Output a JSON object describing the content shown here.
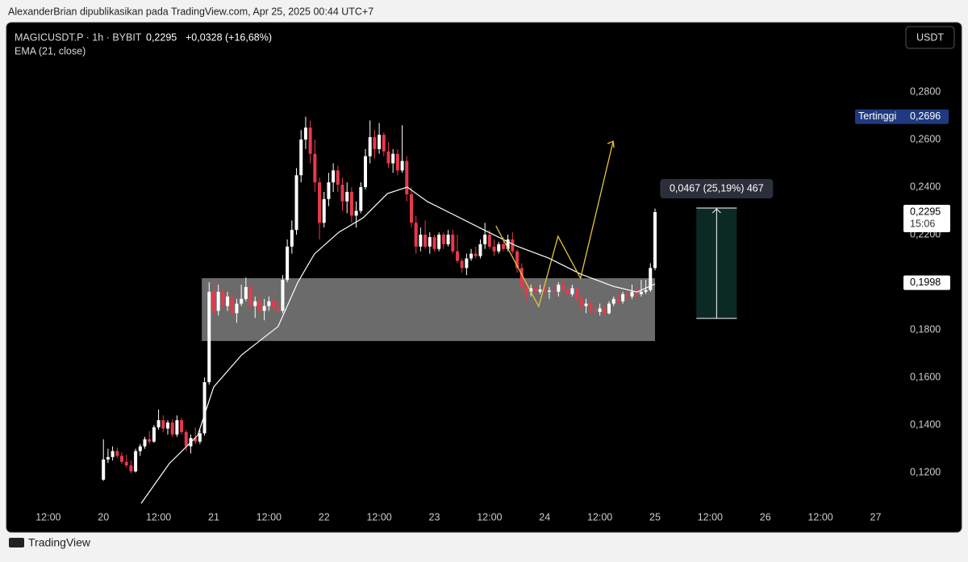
{
  "header": {
    "attribution": "AlexanderBrian dipublikasikan pada TradingView.com, Apr 25, 2025 00:44 UTC+7",
    "symbol": "MAGICUSDT.P · 1h · BYBIT",
    "last": "0,2295",
    "change": "+0,0328 (+16,68%)",
    "currency": "USDT",
    "brand": "TradingView"
  },
  "chart_data": {
    "type": "candlestick",
    "up_color": "#ffffff",
    "down_color": "#e8394a",
    "xlim": [
      1.5,
      196.3
    ],
    "ylim": [
      0.1051,
      0.3085
    ],
    "xticks": [
      {
        "value": 12,
        "label": "12:00"
      },
      {
        "value": 24,
        "label": "20"
      },
      {
        "value": 36,
        "label": "12:00"
      },
      {
        "value": 48,
        "label": "21"
      },
      {
        "value": 60,
        "label": "12:00"
      },
      {
        "value": 72,
        "label": "22"
      },
      {
        "value": 84,
        "label": "12:00"
      },
      {
        "value": 96,
        "label": "23"
      },
      {
        "value": 108,
        "label": "12:00"
      },
      {
        "value": 120,
        "label": "24"
      },
      {
        "value": 132,
        "label": "12:00"
      },
      {
        "value": 144,
        "label": "25"
      },
      {
        "value": 156,
        "label": "12:00"
      },
      {
        "value": 168,
        "label": "26"
      },
      {
        "value": 180,
        "label": "12:00"
      },
      {
        "value": 192,
        "label": "27"
      }
    ],
    "yticks": [
      {
        "value": 0.12,
        "label": "0,1200"
      },
      {
        "value": 0.14,
        "label": "0,1400"
      },
      {
        "value": 0.16,
        "label": "0,1600"
      },
      {
        "value": 0.18,
        "label": "0,1800"
      },
      {
        "value": 0.22,
        "label": "0,2200"
      },
      {
        "value": 0.24,
        "label": "0,2400"
      },
      {
        "value": 0.26,
        "label": "0,2600"
      },
      {
        "value": 0.28,
        "label": "0,2800"
      }
    ],
    "x": [
      24,
      25,
      26,
      27,
      28,
      29,
      30,
      31,
      32,
      33,
      34,
      35,
      36,
      37,
      38,
      39,
      40,
      41,
      42,
      43,
      44,
      45,
      46,
      47,
      48,
      49,
      50,
      51,
      52,
      53,
      54,
      55,
      56,
      57,
      58,
      59,
      60,
      61,
      62,
      63,
      64,
      65,
      66,
      67,
      68,
      69,
      70,
      71,
      72,
      73,
      74,
      75,
      76,
      77,
      78,
      79,
      80,
      81,
      82,
      83,
      84,
      85,
      86,
      87,
      88,
      89,
      90,
      91,
      92,
      93,
      94,
      95,
      96,
      97,
      98,
      99,
      100,
      101,
      102,
      103,
      104,
      105,
      106,
      107,
      108,
      109,
      110,
      111,
      112,
      113,
      114,
      115,
      116,
      117,
      118,
      119,
      120,
      121,
      122,
      123,
      124,
      125,
      126,
      127,
      128,
      129,
      130,
      131,
      132,
      133,
      134,
      135,
      136,
      137,
      138,
      139,
      140,
      141,
      142,
      143,
      144
    ],
    "ohlc": [
      [
        0.117,
        0.134,
        0.1165,
        0.1255
      ],
      [
        0.1255,
        0.13,
        0.124,
        0.1265
      ],
      [
        0.1265,
        0.131,
        0.125,
        0.129
      ],
      [
        0.129,
        0.1305,
        0.126,
        0.127
      ],
      [
        0.127,
        0.1285,
        0.1235,
        0.1245
      ],
      [
        0.1245,
        0.1275,
        0.122,
        0.123
      ],
      [
        0.123,
        0.125,
        0.1195,
        0.1205
      ],
      [
        0.1205,
        0.13,
        0.12,
        0.129
      ],
      [
        0.129,
        0.132,
        0.127,
        0.131
      ],
      [
        0.131,
        0.135,
        0.13,
        0.134
      ],
      [
        0.134,
        0.1375,
        0.132,
        0.133
      ],
      [
        0.133,
        0.14,
        0.1325,
        0.139
      ],
      [
        0.139,
        0.1465,
        0.138,
        0.142
      ],
      [
        0.142,
        0.144,
        0.137,
        0.1385
      ],
      [
        0.1385,
        0.142,
        0.136,
        0.141
      ],
      [
        0.141,
        0.1425,
        0.135,
        0.136
      ],
      [
        0.136,
        0.144,
        0.135,
        0.142
      ],
      [
        0.142,
        0.143,
        0.136,
        0.137
      ],
      [
        0.137,
        0.138,
        0.129,
        0.131
      ],
      [
        0.131,
        0.136,
        0.128,
        0.1345
      ],
      [
        0.1345,
        0.139,
        0.132,
        0.133
      ],
      [
        0.133,
        0.138,
        0.132,
        0.1365
      ],
      [
        0.1365,
        0.16,
        0.1355,
        0.158
      ],
      [
        0.158,
        0.2,
        0.157,
        0.196
      ],
      [
        0.196,
        0.2,
        0.185,
        0.188
      ],
      [
        0.188,
        0.199,
        0.186,
        0.196
      ],
      [
        0.196,
        0.1975,
        0.189,
        0.19
      ],
      [
        0.19,
        0.196,
        0.188,
        0.194
      ],
      [
        0.194,
        0.195,
        0.186,
        0.187
      ],
      [
        0.187,
        0.193,
        0.183,
        0.191
      ],
      [
        0.191,
        0.199,
        0.19,
        0.193
      ],
      [
        0.193,
        0.202,
        0.192,
        0.198
      ],
      [
        0.198,
        0.199,
        0.189,
        0.19
      ],
      [
        0.19,
        0.194,
        0.185,
        0.192
      ],
      [
        0.192,
        0.195,
        0.187,
        0.188
      ],
      [
        0.188,
        0.193,
        0.184,
        0.19
      ],
      [
        0.19,
        0.194,
        0.188,
        0.192
      ],
      [
        0.192,
        0.195,
        0.188,
        0.1895
      ],
      [
        0.1895,
        0.192,
        0.187,
        0.188
      ],
      [
        0.188,
        0.203,
        0.187,
        0.201
      ],
      [
        0.201,
        0.218,
        0.2,
        0.215
      ],
      [
        0.215,
        0.226,
        0.212,
        0.222
      ],
      [
        0.222,
        0.248,
        0.22,
        0.245
      ],
      [
        0.245,
        0.264,
        0.242,
        0.26
      ],
      [
        0.26,
        0.2696,
        0.256,
        0.265
      ],
      [
        0.265,
        0.268,
        0.25,
        0.254
      ],
      [
        0.254,
        0.26,
        0.238,
        0.242
      ],
      [
        0.242,
        0.244,
        0.218,
        0.225
      ],
      [
        0.225,
        0.238,
        0.223,
        0.235
      ],
      [
        0.235,
        0.246,
        0.232,
        0.242
      ],
      [
        0.242,
        0.25,
        0.238,
        0.247
      ],
      [
        0.247,
        0.249,
        0.238,
        0.241
      ],
      [
        0.241,
        0.244,
        0.23,
        0.234
      ],
      [
        0.234,
        0.242,
        0.229,
        0.238
      ],
      [
        0.238,
        0.24,
        0.225,
        0.228
      ],
      [
        0.228,
        0.234,
        0.223,
        0.23
      ],
      [
        0.23,
        0.242,
        0.229,
        0.24
      ],
      [
        0.24,
        0.256,
        0.239,
        0.253
      ],
      [
        0.253,
        0.268,
        0.25,
        0.261
      ],
      [
        0.261,
        0.264,
        0.252,
        0.256
      ],
      [
        0.256,
        0.267,
        0.254,
        0.262
      ],
      [
        0.262,
        0.263,
        0.253,
        0.255
      ],
      [
        0.255,
        0.259,
        0.248,
        0.25
      ],
      [
        0.25,
        0.256,
        0.246,
        0.254
      ],
      [
        0.254,
        0.256,
        0.245,
        0.247
      ],
      [
        0.247,
        0.266,
        0.246,
        0.251
      ],
      [
        0.251,
        0.253,
        0.234,
        0.237
      ],
      [
        0.237,
        0.24,
        0.223,
        0.225
      ],
      [
        0.225,
        0.228,
        0.212,
        0.215
      ],
      [
        0.215,
        0.223,
        0.213,
        0.22
      ],
      [
        0.22,
        0.226,
        0.214,
        0.215
      ],
      [
        0.215,
        0.221,
        0.212,
        0.219
      ],
      [
        0.219,
        0.22,
        0.213,
        0.214
      ],
      [
        0.214,
        0.221,
        0.213,
        0.22
      ],
      [
        0.22,
        0.221,
        0.214,
        0.216
      ],
      [
        0.216,
        0.222,
        0.215,
        0.22
      ],
      [
        0.22,
        0.222,
        0.212,
        0.213
      ],
      [
        0.213,
        0.22,
        0.208,
        0.209
      ],
      [
        0.209,
        0.21,
        0.204,
        0.206
      ],
      [
        0.206,
        0.212,
        0.203,
        0.21
      ],
      [
        0.21,
        0.214,
        0.209,
        0.212
      ],
      [
        0.212,
        0.215,
        0.21,
        0.211
      ],
      [
        0.211,
        0.218,
        0.21,
        0.216
      ],
      [
        0.216,
        0.225,
        0.214,
        0.22
      ],
      [
        0.22,
        0.222,
        0.214,
        0.215
      ],
      [
        0.215,
        0.218,
        0.211,
        0.213
      ],
      [
        0.213,
        0.217,
        0.212,
        0.216
      ],
      [
        0.216,
        0.219,
        0.213,
        0.214
      ],
      [
        0.214,
        0.22,
        0.213,
        0.218
      ],
      [
        0.218,
        0.221,
        0.212,
        0.213
      ],
      [
        0.213,
        0.214,
        0.204,
        0.206
      ],
      [
        0.206,
        0.208,
        0.195,
        0.198
      ],
      [
        0.198,
        0.2,
        0.192,
        0.196
      ],
      [
        0.196,
        0.199,
        0.194,
        0.1975
      ],
      [
        0.1975,
        0.2,
        0.195,
        0.196
      ],
      [
        0.196,
        0.199,
        0.195,
        0.197
      ],
      [
        0.197,
        0.199,
        0.195,
        0.196
      ],
      [
        0.196,
        0.198,
        0.193,
        0.1965
      ],
      [
        0.1965,
        0.1995,
        0.195,
        0.196
      ],
      [
        0.196,
        0.2,
        0.194,
        0.199
      ],
      [
        0.199,
        0.201,
        0.196,
        0.197
      ],
      [
        0.197,
        0.1985,
        0.194,
        0.195
      ],
      [
        0.195,
        0.199,
        0.194,
        0.1975
      ],
      [
        0.1975,
        0.198,
        0.192,
        0.193
      ],
      [
        0.193,
        0.195,
        0.188,
        0.19
      ],
      [
        0.19,
        0.193,
        0.187,
        0.191
      ],
      [
        0.191,
        0.192,
        0.187,
        0.188
      ],
      [
        0.188,
        0.19,
        0.186,
        0.1875
      ],
      [
        0.1875,
        0.191,
        0.186,
        0.189
      ],
      [
        0.189,
        0.19,
        0.186,
        0.187
      ],
      [
        0.187,
        0.192,
        0.1865,
        0.191
      ],
      [
        0.191,
        0.194,
        0.19,
        0.193
      ],
      [
        0.193,
        0.195,
        0.191,
        0.192
      ],
      [
        0.192,
        0.196,
        0.191,
        0.195
      ],
      [
        0.195,
        0.197,
        0.192,
        0.194
      ],
      [
        0.194,
        0.199,
        0.193,
        0.196
      ],
      [
        0.196,
        0.198,
        0.193,
        0.195
      ],
      [
        0.195,
        0.201,
        0.194,
        0.196
      ],
      [
        0.196,
        0.201,
        0.195,
        0.1967
      ],
      [
        0.1967,
        0.208,
        0.196,
        0.206
      ],
      [
        0.206,
        0.231,
        0.205,
        0.2295
      ]
    ],
    "ema": {
      "name": "EMA (21, close)",
      "color": "#ffffff",
      "x": [
        32.2,
        38.3,
        44.5,
        48,
        54.1,
        62,
        66.3,
        69.9,
        75.2,
        80.5,
        85.8,
        90.1,
        94.5,
        99.8,
        106.8,
        113.8,
        120.8,
        127.9,
        134.9,
        140.1,
        144
      ],
      "values": [
        0.107,
        0.1237,
        0.1356,
        0.156,
        0.1695,
        0.1814,
        0.2,
        0.2119,
        0.221,
        0.2271,
        0.2373,
        0.24,
        0.2339,
        0.2288,
        0.222,
        0.2153,
        0.2102,
        0.2034,
        0.1983,
        0.1959,
        0.1993
      ]
    },
    "zone": {
      "color": "#ffffff",
      "x": [
        45.4,
        144
      ],
      "y": [
        0.1753,
        0.2017
      ]
    },
    "drawing": {
      "color": "#e8c440",
      "x": [
        109.4,
        118.7,
        122.9,
        127.8,
        134.9
      ],
      "y": [
        0.2237,
        0.1898,
        0.2193,
        0.2017,
        0.2593
      ]
    },
    "measure": {
      "label": "0,0467 (25,19%) 467",
      "color": "#0c2a24",
      "x": [
        153,
        161.8
      ],
      "y": [
        0.1848,
        0.2312
      ]
    },
    "price_labels": [
      {
        "name": "Tertinggi",
        "value": 0.2696,
        "label": "0,2696",
        "color": "#1f3a80"
      },
      {
        "value": 0.2295,
        "label": "0,2295",
        "countdown": "15:06",
        "color": "#ffffff"
      },
      {
        "value": 0.1998,
        "label": "0,1998",
        "color": "#ffffff"
      }
    ]
  }
}
